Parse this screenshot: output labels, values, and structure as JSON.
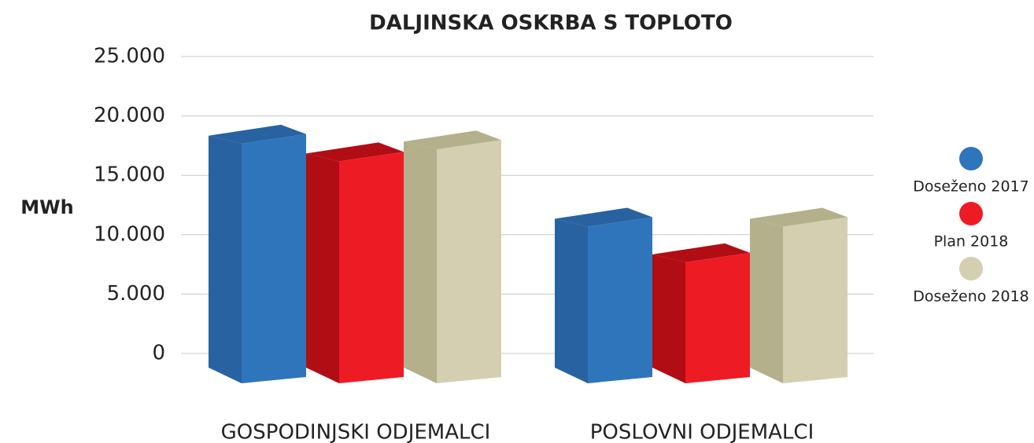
{
  "chart_data": {
    "type": "bar3d",
    "title": "DALJINSKA OSKRBA S TOPLOTO",
    "y_label": "MWh",
    "categories": [
      "GOSPODINJSKI ODJEMALCI",
      "POSLOVNI ODJEMALCI"
    ],
    "series": [
      {
        "name": "Doseženo 2017",
        "color": "#2e75bb",
        "side": "#2862a0",
        "values": [
          19000,
          12000
        ]
      },
      {
        "name": "Plan 2018",
        "color": "#ed1c24",
        "side": "#b00d15",
        "values": [
          17500,
          9000
        ]
      },
      {
        "name": "Doseženo 2018",
        "color": "#d3cfb0",
        "side": "#b3b08b",
        "values": [
          18500,
          12000
        ]
      }
    ],
    "ylim": [
      0,
      25000
    ],
    "yticks": [
      0,
      {
        "value": 5000,
        "label": "5.000"
      },
      {
        "value": 10000,
        "label": "10.000"
      },
      {
        "value": 15000,
        "label": "15.000"
      },
      {
        "value": 20000,
        "label": "20.000"
      },
      {
        "value": 25000,
        "label": "25.000"
      }
    ],
    "grid": true,
    "legend": "right"
  }
}
